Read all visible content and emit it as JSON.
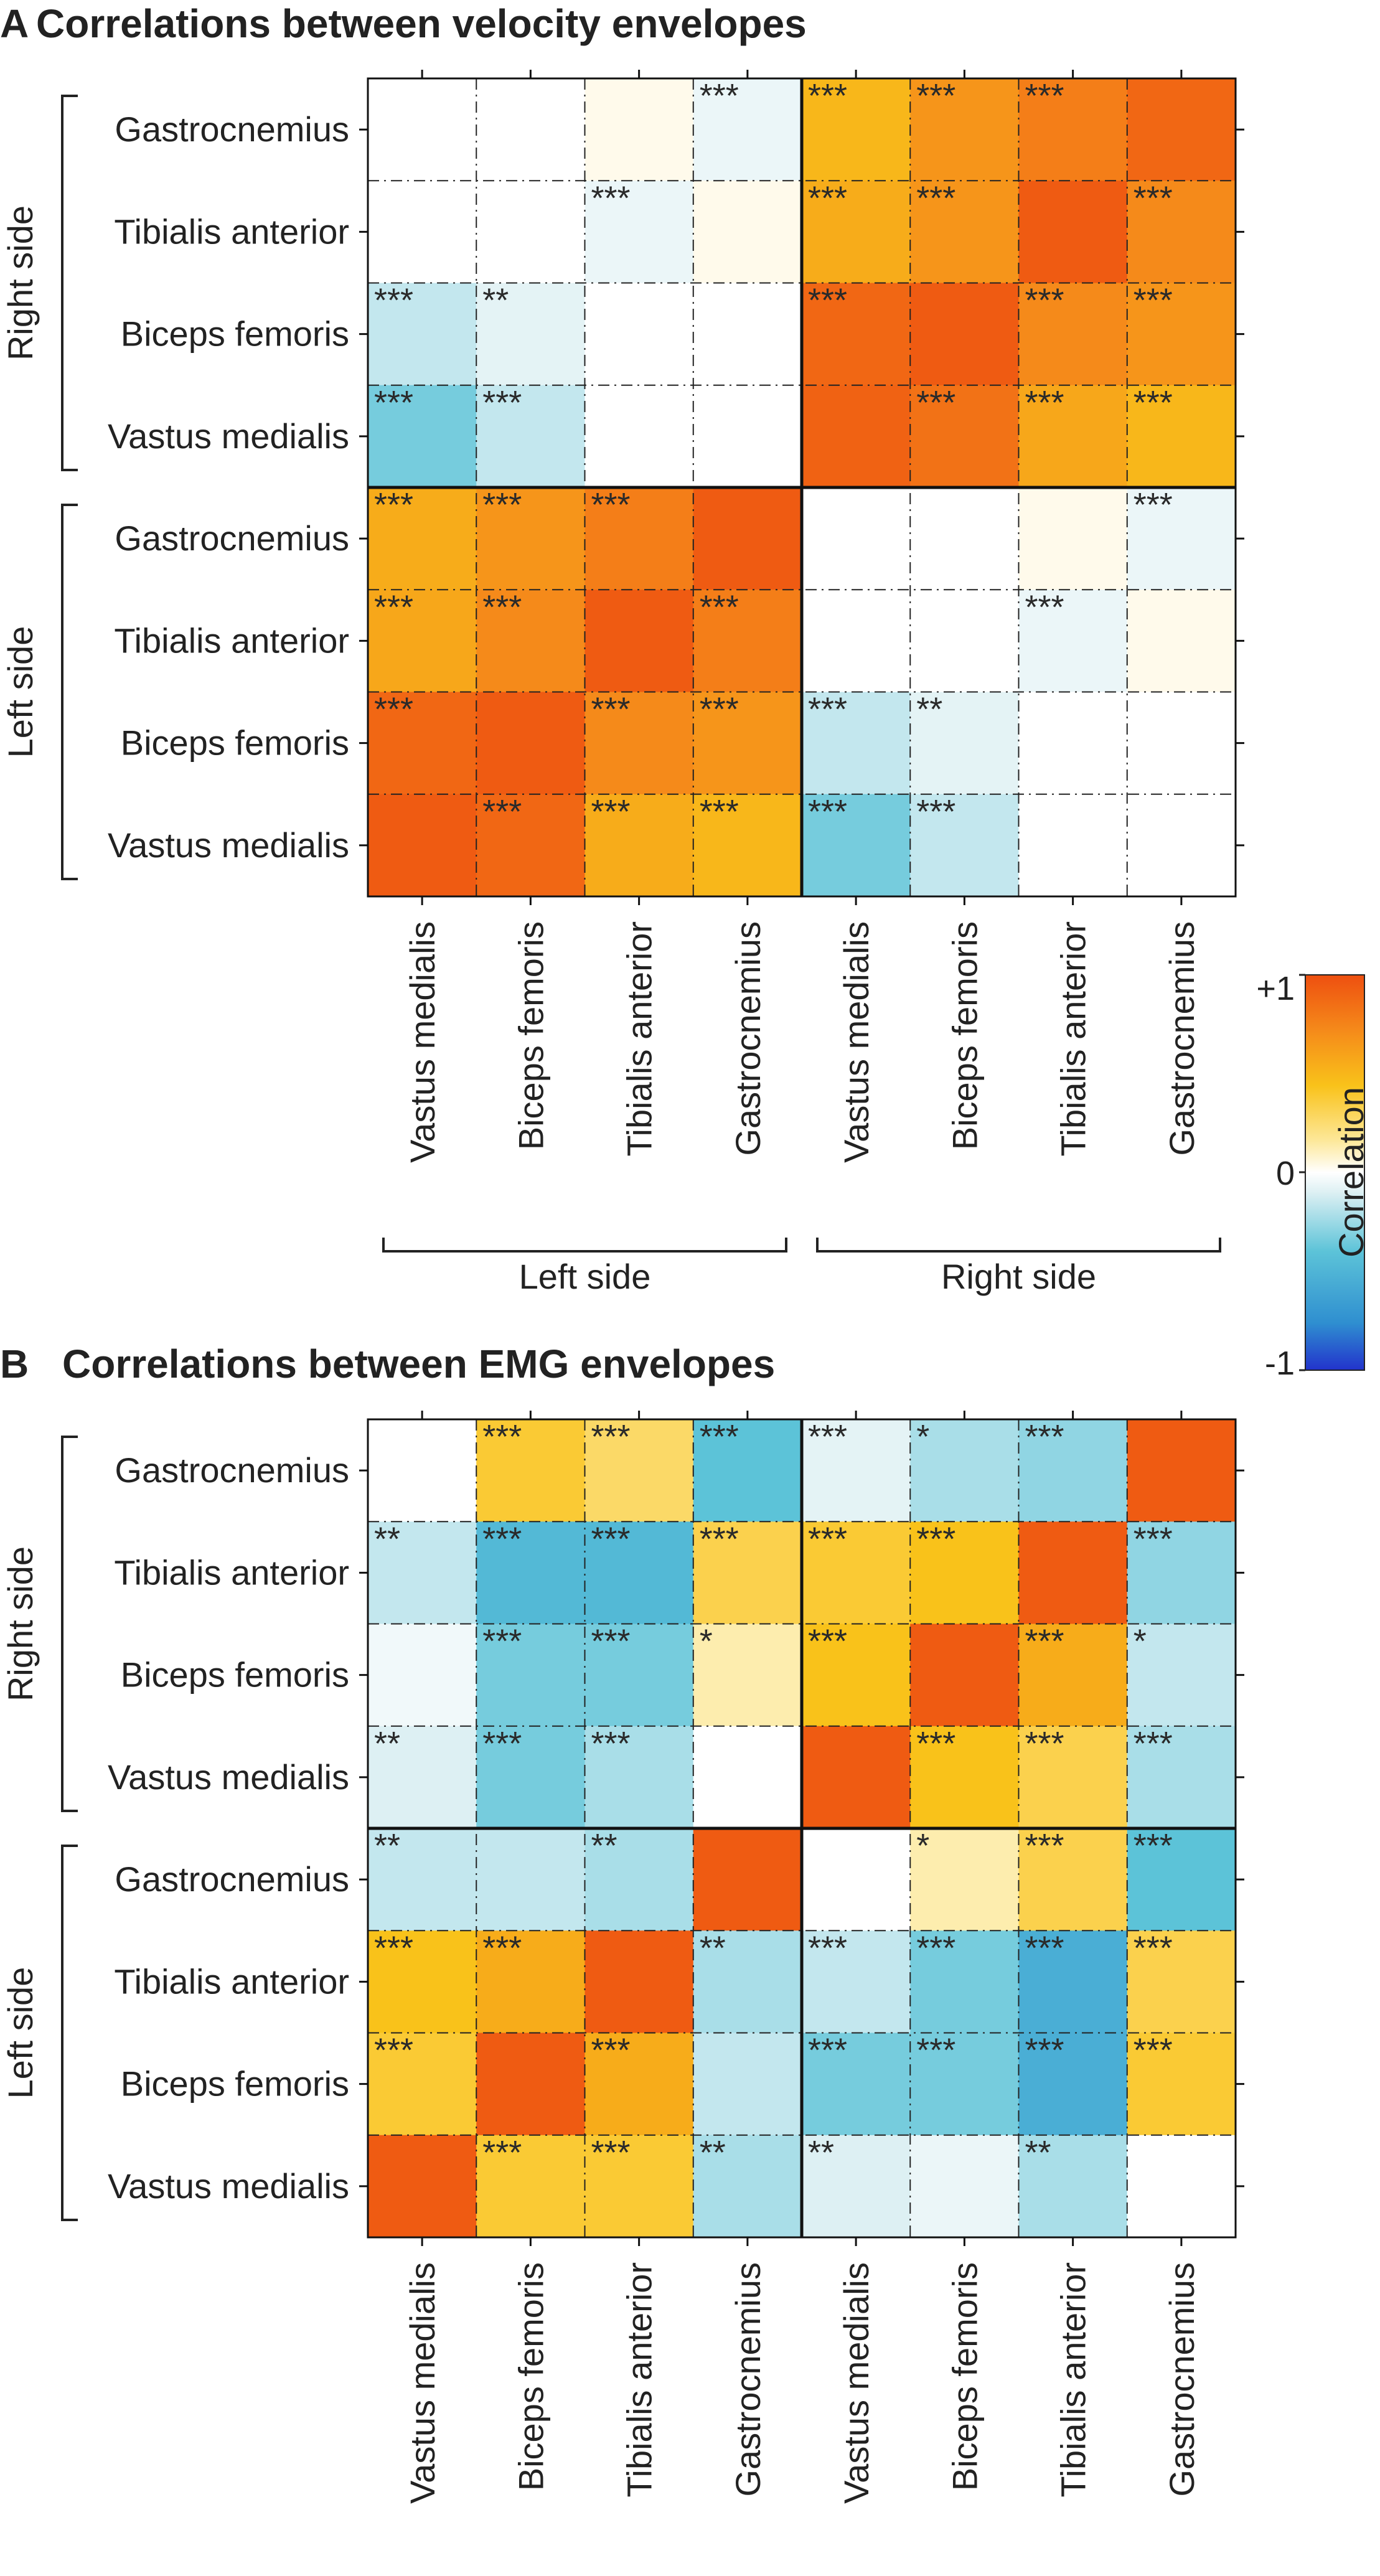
{
  "chart_data": [
    {
      "type": "heatmap",
      "panel": "A",
      "title": "Correlations between velocity envelopes",
      "rows": [
        {
          "group": "Right side",
          "label": "Gastrocnemius"
        },
        {
          "group": "Right side",
          "label": "Tibialis anterior"
        },
        {
          "group": "Right side",
          "label": "Biceps femoris"
        },
        {
          "group": "Right side",
          "label": "Vastus medialis"
        },
        {
          "group": "Left side",
          "label": "Gastrocnemius"
        },
        {
          "group": "Left side",
          "label": "Tibialis anterior"
        },
        {
          "group": "Left side",
          "label": "Biceps femoris"
        },
        {
          "group": "Left side",
          "label": "Vastus medialis"
        }
      ],
      "columns": [
        {
          "group": "Left side",
          "label": "Vastus medialis"
        },
        {
          "group": "Left side",
          "label": "Biceps femoris"
        },
        {
          "group": "Left side",
          "label": "Tibialis anterior"
        },
        {
          "group": "Left side",
          "label": "Gastrocnemius"
        },
        {
          "group": "Right side",
          "label": "Vastus medialis"
        },
        {
          "group": "Right side",
          "label": "Biceps femoris"
        },
        {
          "group": "Right side",
          "label": "Tibialis anterior"
        },
        {
          "group": "Right side",
          "label": "Gastrocnemius"
        }
      ],
      "row_group_labels": [
        "Right side",
        "Left side"
      ],
      "col_group_labels": [
        "Left side",
        "Right side"
      ],
      "values": [
        [
          0.0,
          0.0,
          0.05,
          -0.15,
          0.55,
          0.7,
          0.8,
          0.9
        ],
        [
          0.0,
          0.0,
          -0.15,
          0.05,
          0.6,
          0.7,
          0.95,
          0.75
        ],
        [
          -0.3,
          -0.2,
          0.0,
          0.0,
          0.9,
          0.95,
          0.75,
          0.7
        ],
        [
          -0.45,
          -0.3,
          0.0,
          0.0,
          0.92,
          0.85,
          0.62,
          0.55
        ],
        [
          0.6,
          0.7,
          0.8,
          0.95,
          0.0,
          0.0,
          0.05,
          -0.15
        ],
        [
          0.62,
          0.75,
          0.95,
          0.8,
          0.0,
          0.0,
          -0.15,
          0.05
        ],
        [
          0.9,
          0.95,
          0.75,
          0.7,
          -0.3,
          -0.2,
          0.0,
          0.0
        ],
        [
          0.95,
          0.9,
          0.6,
          0.55,
          -0.45,
          -0.3,
          0.0,
          0.0
        ]
      ],
      "stars": [
        [
          "",
          "",
          "",
          "***",
          "***",
          "***",
          "***",
          ""
        ],
        [
          "",
          "",
          "***",
          "",
          "***",
          "***",
          "",
          "***"
        ],
        [
          "***",
          "**",
          "",
          "",
          "***",
          "",
          "***",
          "***"
        ],
        [
          "***",
          "***",
          "",
          "",
          "",
          "***",
          "***",
          "***"
        ],
        [
          "***",
          "***",
          "***",
          "",
          "",
          "",
          "",
          "***"
        ],
        [
          "***",
          "***",
          "",
          "***",
          "",
          "",
          "***",
          ""
        ],
        [
          "***",
          "",
          "***",
          "***",
          "***",
          "**",
          "",
          ""
        ],
        [
          "",
          "***",
          "***",
          "***",
          "***",
          "***",
          "",
          ""
        ]
      ]
    },
    {
      "type": "heatmap",
      "panel": "B",
      "title": "Correlations between EMG envelopes",
      "rows": [
        {
          "group": "Right side",
          "label": "Gastrocnemius"
        },
        {
          "group": "Right side",
          "label": "Tibialis anterior"
        },
        {
          "group": "Right side",
          "label": "Biceps femoris"
        },
        {
          "group": "Right side",
          "label": "Vastus medialis"
        },
        {
          "group": "Left side",
          "label": "Gastrocnemius"
        },
        {
          "group": "Left side",
          "label": "Tibialis anterior"
        },
        {
          "group": "Left side",
          "label": "Biceps femoris"
        },
        {
          "group": "Left side",
          "label": "Vastus medialis"
        }
      ],
      "columns": [
        {
          "group": "Left side",
          "label": "Vastus medialis"
        },
        {
          "group": "Left side",
          "label": "Biceps femoris"
        },
        {
          "group": "Left side",
          "label": "Tibialis anterior"
        },
        {
          "group": "Left side",
          "label": "Gastrocnemius"
        },
        {
          "group": "Right side",
          "label": "Vastus medialis"
        },
        {
          "group": "Right side",
          "label": "Biceps femoris"
        },
        {
          "group": "Right side",
          "label": "Tibialis anterior"
        },
        {
          "group": "Right side",
          "label": "Gastrocnemius"
        }
      ],
      "row_group_labels": [
        "Right side",
        "Left side"
      ],
      "col_group_labels": [
        "Left side",
        "Right side"
      ],
      "values": [
        [
          0.0,
          0.45,
          0.35,
          -0.5,
          -0.2,
          -0.35,
          -0.4,
          0.95
        ],
        [
          -0.3,
          -0.55,
          -0.55,
          0.4,
          0.45,
          0.5,
          0.95,
          -0.4
        ],
        [
          -0.1,
          -0.45,
          -0.45,
          0.2,
          0.5,
          0.95,
          0.6,
          -0.3
        ],
        [
          -0.25,
          -0.45,
          -0.35,
          0.0,
          0.95,
          0.5,
          0.4,
          -0.35
        ],
        [
          -0.3,
          -0.3,
          -0.35,
          0.95,
          0.0,
          0.2,
          0.4,
          -0.5
        ],
        [
          0.5,
          0.6,
          0.95,
          -0.35,
          -0.3,
          -0.45,
          -0.6,
          0.4
        ],
        [
          0.45,
          0.95,
          0.6,
          -0.3,
          -0.45,
          -0.45,
          -0.6,
          0.45
        ],
        [
          0.95,
          0.45,
          0.45,
          -0.35,
          -0.25,
          -0.15,
          -0.35,
          0.0
        ]
      ],
      "stars": [
        [
          "",
          "***",
          "***",
          "***",
          "***",
          "*",
          "***",
          ""
        ],
        [
          "**",
          "***",
          "***",
          "***",
          "***",
          "***",
          "",
          "***"
        ],
        [
          "",
          "***",
          "***",
          "*",
          "***",
          "",
          "***",
          "*"
        ],
        [
          "**",
          "***",
          "***",
          "",
          "",
          "***",
          "***",
          "***"
        ],
        [
          "**",
          "",
          "**",
          "",
          "",
          "*",
          "***",
          "***"
        ],
        [
          "***",
          "***",
          "",
          "**",
          "***",
          "***",
          "***",
          "***"
        ],
        [
          "***",
          "",
          "***",
          "",
          "***",
          "***",
          "***",
          "***"
        ],
        [
          "",
          "***",
          "***",
          "**",
          "**",
          "",
          "**",
          ""
        ]
      ]
    }
  ],
  "colorbar": {
    "label": "Correlation",
    "ticks": [
      "+1",
      "0",
      "-1"
    ],
    "range": [
      -1,
      1
    ],
    "colors": [
      "#2233cc",
      "#2f8fd0",
      "#5cc3d8",
      "#ddf0f3",
      "#ffffff",
      "#fde89a",
      "#f9c21a",
      "#f58a1a",
      "#ee4f10"
    ]
  }
}
